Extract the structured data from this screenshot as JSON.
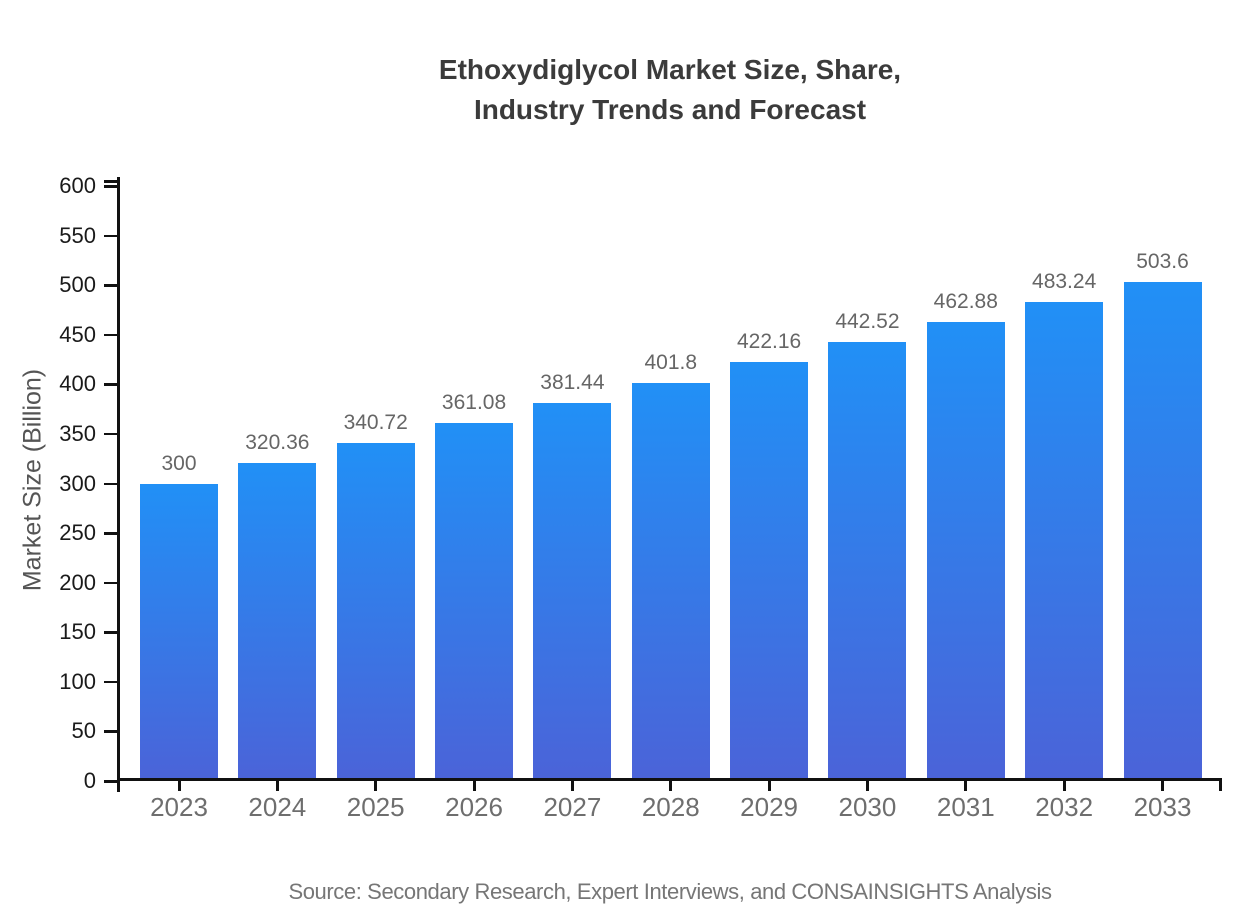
{
  "header": {
    "title_line1": "Ethoxydiglycol Market Size, Share,",
    "title_line2": "Industry Trends and Forecast"
  },
  "footer": {
    "source": "Source: Secondary Research, Expert Interviews, and CONSAINSIGHTS Analysis"
  },
  "chart_data": {
    "type": "bar",
    "title": "Ethoxydiglycol Market Size, Share, Industry Trends and Forecast",
    "categories": [
      "2023",
      "2024",
      "2025",
      "2026",
      "2027",
      "2028",
      "2029",
      "2030",
      "2031",
      "2032",
      "2033"
    ],
    "values": [
      300,
      320.36,
      340.72,
      361.08,
      381.44,
      401.8,
      422.16,
      442.52,
      462.88,
      483.24,
      503.6
    ],
    "value_labels": [
      "300",
      "320.36",
      "340.72",
      "361.08",
      "381.44",
      "401.8",
      "422.16",
      "442.52",
      "462.88",
      "483.24",
      "503.6"
    ],
    "xlabel": "",
    "ylabel": "Market Size (Billion)",
    "ylim": [
      0,
      600
    ],
    "ytick_step": 50,
    "grid": false,
    "legend_position": "none",
    "colors": {
      "bar_gradient_top": "#2190f6",
      "bar_gradient_bottom": "#4b63d8",
      "axis": "#111111",
      "y_tick_label": "#1a1a1a",
      "x_tick_label": "#6e6e6e",
      "bar_value_label": "#666666",
      "title": "#3b3b3b",
      "source": "#767676"
    }
  }
}
